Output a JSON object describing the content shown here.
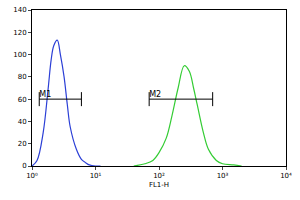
{
  "chart_data": {
    "type": "line",
    "x_label": "FL1-H",
    "log": "x",
    "grid": false,
    "xlim": [
      1,
      10000
    ],
    "xticks": [
      {
        "value": 1,
        "label": "10⁰"
      },
      {
        "value": 10,
        "label": "10¹"
      },
      {
        "value": 100,
        "label": "10²"
      },
      {
        "value": 1000,
        "label": "10³"
      },
      {
        "value": 10000,
        "label": "10⁴"
      }
    ],
    "ylim": [
      0,
      140
    ],
    "yticks": [
      0,
      20,
      40,
      60,
      80,
      100,
      120,
      140
    ],
    "series": [
      {
        "color": "#2b3fd6",
        "x": [
          1,
          1.2,
          1.5,
          1.8,
          2.0,
          2.2,
          2.5,
          2.8,
          3.2,
          3.6,
          4,
          5,
          6,
          7,
          8,
          10,
          12
        ],
        "values": [
          0,
          5,
          30,
          70,
          95,
          108,
          113,
          100,
          80,
          55,
          35,
          15,
          6,
          3,
          1,
          0,
          0
        ]
      },
      {
        "color": "#33cc33",
        "x": [
          40,
          60,
          80,
          100,
          130,
          160,
          200,
          250,
          300,
          350,
          400,
          500,
          600,
          800,
          1000,
          1500,
          2000
        ],
        "values": [
          0,
          2,
          5,
          12,
          25,
          45,
          70,
          90,
          85,
          70,
          55,
          30,
          15,
          5,
          2,
          1,
          0
        ]
      }
    ],
    "annotations": [
      {
        "text": "M1",
        "x": [
          1.3,
          6
        ],
        "y": 60
      },
      {
        "text": "M2",
        "x": [
          70,
          700
        ],
        "y": 60
      }
    ]
  }
}
